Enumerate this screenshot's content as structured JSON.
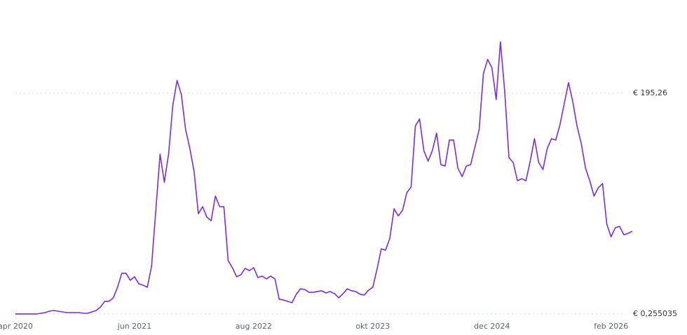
{
  "chart_data": {
    "type": "line",
    "categories": [
      "apr 2020",
      null,
      null,
      null,
      null,
      null,
      null,
      null,
      null,
      null,
      null,
      null,
      null,
      null,
      null,
      null,
      null,
      null,
      null,
      null,
      null,
      null,
      null,
      null,
      null,
      null,
      null,
      null,
      "jun 2021",
      null,
      null,
      null,
      null,
      null,
      null,
      null,
      null,
      null,
      null,
      null,
      null,
      null,
      null,
      null,
      null,
      null,
      null,
      null,
      null,
      null,
      null,
      null,
      null,
      null,
      null,
      null,
      "aug 2022",
      null,
      null,
      null,
      null,
      null,
      null,
      null,
      null,
      null,
      null,
      null,
      null,
      null,
      null,
      null,
      null,
      null,
      null,
      null,
      null,
      null,
      null,
      null,
      null,
      null,
      null,
      null,
      "okt 2023",
      null,
      null,
      null,
      null,
      null,
      null,
      null,
      null,
      null,
      null,
      null,
      null,
      null,
      null,
      null,
      null,
      null,
      null,
      null,
      null,
      null,
      null,
      null,
      null,
      null,
      null,
      null,
      "dec 2024",
      null,
      null,
      null,
      null,
      null,
      null,
      null,
      null,
      null,
      null,
      null,
      null,
      null,
      null,
      null,
      null,
      null,
      null,
      null,
      null,
      null,
      null,
      null,
      null,
      null,
      null,
      null,
      "feb 2026",
      null,
      null,
      null,
      null,
      null
    ],
    "series": [
      {
        "color": "#7b2ae6",
        "values": [
          0.26,
          0.26,
          0.26,
          0.26,
          0.26,
          0.26,
          0.87,
          1.49,
          2.73,
          3.35,
          2.73,
          2.11,
          1.49,
          1.49,
          1.49,
          1.49,
          0.87,
          0.87,
          2.11,
          3.35,
          6.44,
          11.4,
          11.4,
          14.5,
          23.8,
          36.2,
          36.2,
          30.0,
          33.1,
          26.9,
          25.7,
          23.8,
          42.4,
          91.9,
          141.4,
          116.6,
          141.4,
          184.7,
          206.4,
          194.0,
          163.1,
          146.4,
          125.9,
          88.8,
          95.0,
          85.7,
          82.6,
          104.3,
          95.0,
          95.0,
          47.3,
          41.1,
          33.1,
          34.9,
          40.5,
          38.6,
          41.1,
          32.4,
          33.7,
          31.2,
          33.7,
          31.2,
          13.3,
          12.6,
          11.4,
          10.2,
          17.6,
          22.5,
          21.9,
          19.4,
          19.4,
          20.1,
          20.7,
          18.8,
          20.1,
          18.2,
          14.5,
          18.2,
          22.5,
          20.7,
          20.1,
          17.6,
          17.0,
          21.3,
          23.8,
          39.9,
          57.8,
          56.6,
          67.1,
          93.1,
          86.9,
          91.9,
          107.4,
          112.3,
          166.2,
          172.4,
          144.5,
          135.2,
          144.5,
          159.9,
          132.1,
          130.9,
          153.8,
          153.8,
          129.0,
          121.6,
          130.9,
          132.1,
          147.6,
          163.1,
          212.6,
          225.0,
          217.6,
          189.7,
          240.5,
          197.1,
          138.3,
          134.0,
          117.9,
          119.7,
          117.9,
          135.2,
          155.0,
          134.0,
          127.8,
          146.4,
          155.0,
          153.8,
          167.4,
          186.0,
          204.5,
          187.8,
          166.2,
          150.7,
          129.0,
          117.9,
          104.3,
          111.7,
          115.4,
          79.5,
          68.4,
          76.4,
          77.6,
          70.2,
          71.4,
          73.3
        ]
      }
    ],
    "ylim": [
      0,
      275
    ],
    "yticks": [
      {
        "value": 0.255035,
        "label": "€ 0,255035"
      },
      {
        "value": 195.26,
        "label": "€ 195,26"
      }
    ],
    "grid": true
  }
}
